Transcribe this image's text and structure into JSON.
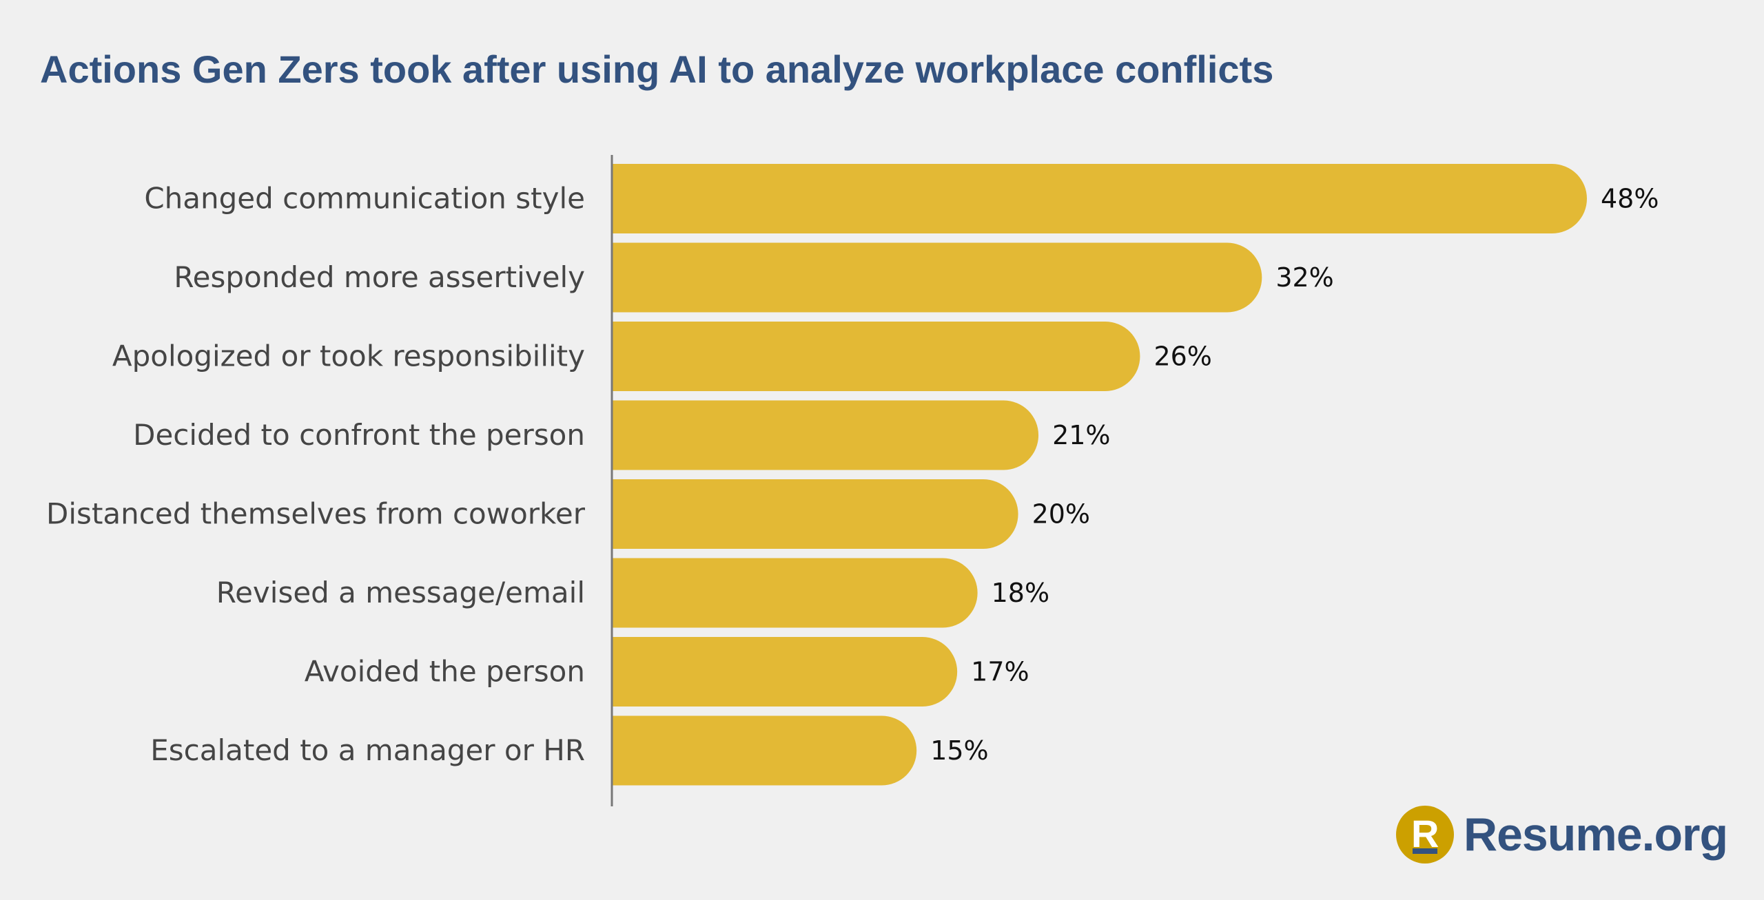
{
  "chart_data": {
    "type": "bar",
    "orientation": "horizontal",
    "title": "Actions Gen Zers took after using AI to analyze workplace conflicts",
    "categories": [
      "Changed communication style",
      "Responded more assertively",
      "Apologized or took responsibility",
      "Decided to confront the person",
      "Distanced themselves from coworker",
      "Revised a message/email",
      "Avoided the person",
      "Escalated to a manager or HR"
    ],
    "values": [
      48,
      32,
      26,
      21,
      20,
      18,
      17,
      15
    ],
    "value_labels": [
      "48%",
      "32%",
      "26%",
      "21%",
      "20%",
      "18%",
      "17%",
      "15%"
    ],
    "xlabel": "",
    "ylabel": "",
    "xlim": [
      0,
      48
    ],
    "grid": false,
    "bar_color": "#e3b935"
  },
  "brand": {
    "logo_letter": "R",
    "name": "Resume.org",
    "color": "#33527f",
    "mark_color": "#cca000"
  }
}
